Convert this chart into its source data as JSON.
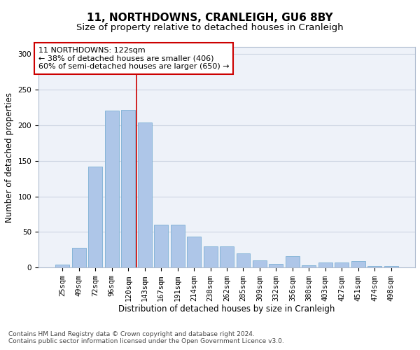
{
  "title1": "11, NORTHDOWNS, CRANLEIGH, GU6 8BY",
  "title2": "Size of property relative to detached houses in Cranleigh",
  "xlabel": "Distribution of detached houses by size in Cranleigh",
  "ylabel": "Number of detached properties",
  "categories": [
    "25sqm",
    "49sqm",
    "72sqm",
    "96sqm",
    "120sqm",
    "143sqm",
    "167sqm",
    "191sqm",
    "214sqm",
    "238sqm",
    "262sqm",
    "285sqm",
    "309sqm",
    "332sqm",
    "356sqm",
    "380sqm",
    "403sqm",
    "427sqm",
    "451sqm",
    "474sqm",
    "498sqm"
  ],
  "values": [
    4,
    28,
    142,
    220,
    221,
    204,
    60,
    60,
    44,
    30,
    30,
    20,
    10,
    5,
    16,
    3,
    7,
    7,
    9,
    2,
    2
  ],
  "bar_color": "#aec6e8",
  "bar_edge_color": "#7bafd4",
  "grid_color": "#cdd5e3",
  "background_color": "#eef2f9",
  "annotation_box_text": "11 NORTHDOWNS: 122sqm\n← 38% of detached houses are smaller (406)\n60% of semi-detached houses are larger (650) →",
  "annotation_box_color": "#ffffff",
  "annotation_box_edge_color": "#cc0000",
  "vline_color": "#cc0000",
  "vline_x": 4.5,
  "ylim": [
    0,
    310
  ],
  "yticks": [
    0,
    50,
    100,
    150,
    200,
    250,
    300
  ],
  "footnote1": "Contains HM Land Registry data © Crown copyright and database right 2024.",
  "footnote2": "Contains public sector information licensed under the Open Government Licence v3.0.",
  "title_fontsize": 11,
  "subtitle_fontsize": 9.5,
  "axis_label_fontsize": 8.5,
  "tick_fontsize": 7.5,
  "annotation_fontsize": 8
}
